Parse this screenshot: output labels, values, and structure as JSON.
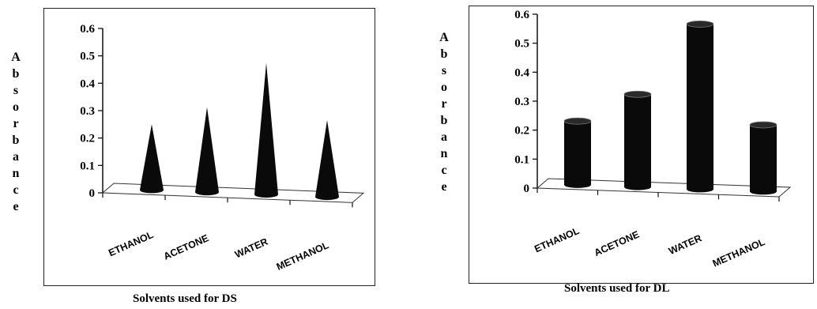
{
  "chart_data": [
    {
      "type": "bar",
      "shape": "cone",
      "categories": [
        "ETHANOL",
        "ACETONE",
        "WATER",
        "METHANOL"
      ],
      "values": [
        0.24,
        0.31,
        0.48,
        0.28
      ],
      "xlabel": "Solvents used for DS",
      "ylabel": "Absorbance",
      "ylim": [
        0,
        0.6
      ],
      "yticks": [
        "0",
        "0.1",
        "0.2",
        "0.3",
        "0.4",
        "0.5",
        "0.6"
      ],
      "grid": false,
      "bar_color": "#0a0a0a"
    },
    {
      "type": "bar",
      "shape": "cylinder",
      "categories": [
        "ETHANOL",
        "ACETONE",
        "WATER",
        "METHANOL"
      ],
      "values": [
        0.22,
        0.32,
        0.57,
        0.23
      ],
      "xlabel": "Solvents used for DL",
      "ylabel": "Absorbance",
      "ylim": [
        0,
        0.6
      ],
      "yticks": [
        "0",
        "0.1",
        "0.2",
        "0.3",
        "0.4",
        "0.5",
        "0.6"
      ],
      "grid": false,
      "bar_color": "#0a0a0a"
    }
  ]
}
